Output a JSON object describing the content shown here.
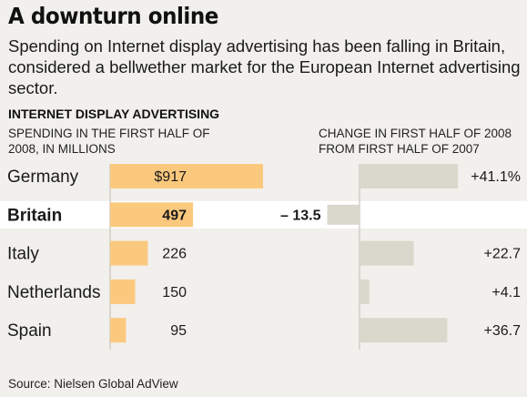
{
  "title": "A downturn online",
  "subtitle": "Spending on Internet display advertising has been falling in Britain, considered a bellwether market for the European Internet advertising sector.",
  "section_label": "INTERNET DISPLAY ADVERTISING",
  "left_header": "SPENDING IN THE FIRST HALF OF 2008, IN MILLIONS",
  "right_header": "CHANGE IN FIRST HALF OF 2008 FROM FIRST HALF OF 2007",
  "source": "Source: Nielsen Global AdView",
  "colors": {
    "spend_bar": "#fbc97e",
    "change_bar": "#dad7cc",
    "highlight_row": "#ffffff",
    "axis": "#bdbab2"
  },
  "chart_data": {
    "type": "bar",
    "categories": [
      "Germany",
      "Britain",
      "Italy",
      "Netherlands",
      "Spain"
    ],
    "highlight": "Britain",
    "series": [
      {
        "values": [
          917,
          497,
          226,
          150,
          95
        ],
        "labels": [
          "$917",
          "497",
          "226",
          "150",
          "95"
        ]
      },
      {
        "values": [
          41.1,
          -13.5,
          22.7,
          4.1,
          36.7
        ],
        "labels": [
          "+41.1%",
          "– 13.5",
          "+22.7",
          "+4.1",
          "+36.7"
        ]
      }
    ]
  }
}
